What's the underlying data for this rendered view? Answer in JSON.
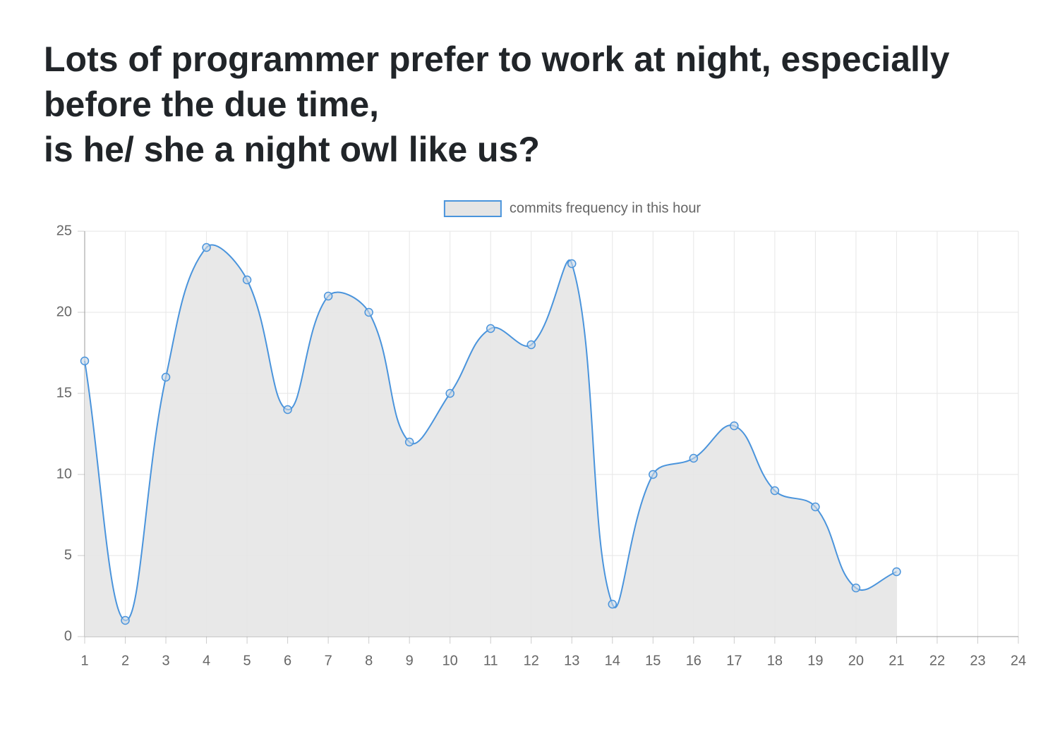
{
  "chart_data": {
    "type": "line",
    "title": [
      "Lots of programmer prefer to work at night, especially before the due time,",
      "is he/ she a night owl like us?"
    ],
    "categories": [
      "1",
      "2",
      "3",
      "4",
      "5",
      "6",
      "7",
      "8",
      "9",
      "10",
      "11",
      "12",
      "13",
      "14",
      "15",
      "16",
      "17",
      "18",
      "19",
      "20",
      "21",
      "22",
      "23",
      "24"
    ],
    "series": [
      {
        "name": "commits frequency in this hour",
        "color": "#4a94dc",
        "fill_color": "#e5e5e5",
        "values": [
          17,
          1,
          16,
          24,
          22,
          14,
          21,
          20,
          12,
          15,
          19,
          18,
          23,
          2,
          10,
          11,
          13,
          9,
          8,
          3,
          4,
          null,
          null,
          null
        ]
      }
    ],
    "ylim": [
      0,
      25
    ],
    "yticks": [
      0,
      5,
      10,
      15,
      20,
      25
    ],
    "grid": true,
    "legend": "top"
  }
}
